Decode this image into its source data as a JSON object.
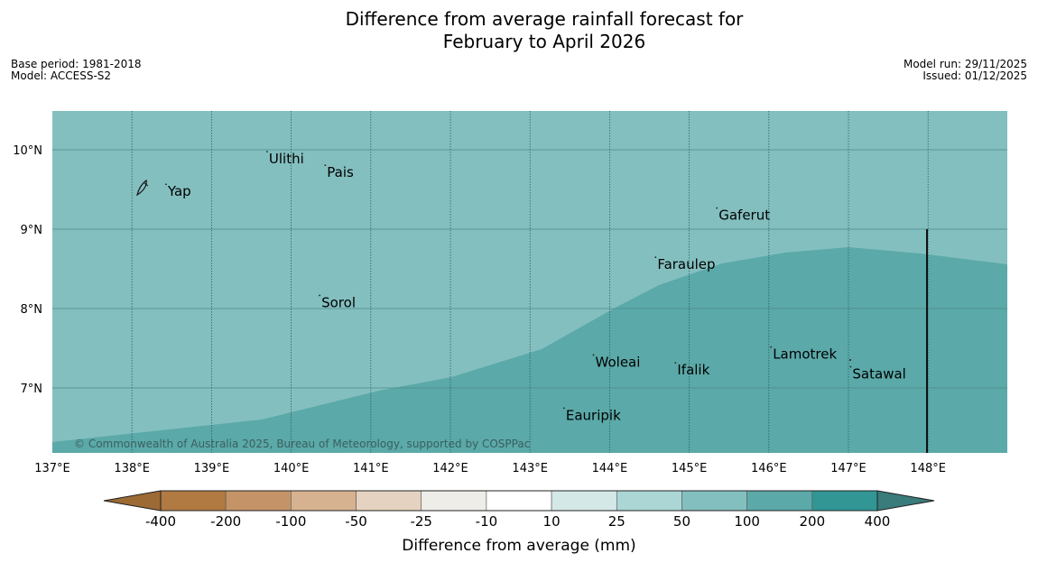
{
  "title_line1": "Difference from average rainfall forecast for",
  "title_line2": "February to April 2026",
  "base_period": "Base period: 1981-2018",
  "model": "Model: ACCESS-S2",
  "model_run": "Model run: 29/11/2025",
  "issued": "Issued: 01/12/2025",
  "copyright": "© Commonwealth of Australia 2025, Bureau of Meteorology, supported by COSPPac",
  "map": {
    "lon_labels": [
      "137°E",
      "138°E",
      "139°E",
      "140°E",
      "141°E",
      "142°E",
      "143°E",
      "144°E",
      "145°E",
      "146°E",
      "147°E",
      "148°E"
    ],
    "lat_labels": [
      "10°N",
      "9°N",
      "8°N",
      "7°N"
    ],
    "places": [
      {
        "name": "Yap",
        "lon": 138.45,
        "lat": 9.52
      },
      {
        "name": "Ulithi",
        "lon": 139.72,
        "lat": 9.93
      },
      {
        "name": "Pais",
        "lon": 140.45,
        "lat": 9.76
      },
      {
        "name": "Sorol",
        "lon": 140.38,
        "lat": 8.12
      },
      {
        "name": "Gaferut",
        "lon": 145.37,
        "lat": 9.22
      },
      {
        "name": "Faraulep",
        "lon": 144.6,
        "lat": 8.6
      },
      {
        "name": "Lamotrek",
        "lon": 146.05,
        "lat": 7.47
      },
      {
        "name": "Woleai",
        "lon": 143.82,
        "lat": 7.37
      },
      {
        "name": "Ifalik",
        "lon": 144.85,
        "lat": 7.27
      },
      {
        "name": "Satawal",
        "lon": 147.05,
        "lat": 7.22
      },
      {
        "name": "Eauripik",
        "lon": 143.45,
        "lat": 6.7
      }
    ],
    "categories": {
      "background": "50 to 100",
      "region": "100 to 200"
    }
  },
  "colorbar": {
    "ticks": [
      "-400",
      "-200",
      "-100",
      "-50",
      "-25",
      "-10",
      "10",
      "25",
      "50",
      "100",
      "200",
      "400"
    ],
    "label": "Difference from average (mm)",
    "colors": [
      "#9c6a34",
      "#b07a42",
      "#c49468",
      "#d6b290",
      "#e5d2c0",
      "#efede8",
      "#ffffff",
      "#d5e8e8",
      "#abd6d5",
      "#84bfbf",
      "#5ba9a9",
      "#329695",
      "#3a7b7b"
    ]
  },
  "colors": {
    "bg_category": "#84bfbf",
    "region_category": "#5ba9a9",
    "line": "#111111"
  }
}
